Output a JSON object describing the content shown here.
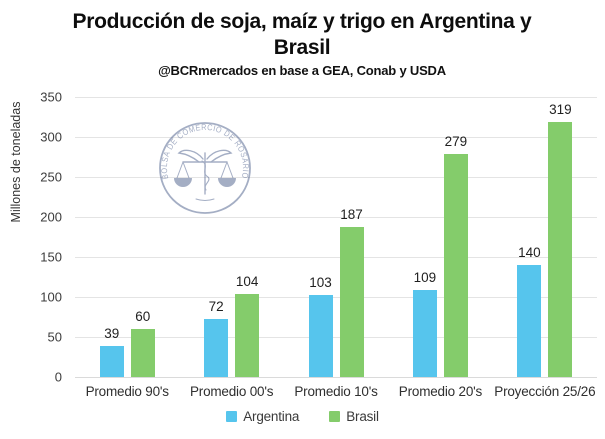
{
  "chart": {
    "title": "Producción de soja, maíz y trigo en Argentina y Brasil",
    "subtitle": "@BCRmercados en base a GEA, Conab y USDA",
    "ylabel": "Millones de toneladas"
  },
  "watermark": {
    "text": "BOLSA DE COMERCIO DE ROSARIO",
    "color": "#5b6c95"
  },
  "chart_data": {
    "type": "bar",
    "title": "Producción de soja, maíz y trigo en Argentina y Brasil",
    "subtitle": "@BCRmercados en base a GEA, Conab y USDA",
    "xlabel": "",
    "ylabel": "Millones de toneladas",
    "categories": [
      "Promedio 90's",
      "Promedio 00's",
      "Promedio 10's",
      "Promedio 20's",
      "Proyección 25/26"
    ],
    "series": [
      {
        "name": "Argentina",
        "color": "#56c5ed",
        "values": [
          39,
          72,
          103,
          109,
          140
        ]
      },
      {
        "name": "Brasil",
        "color": "#84cc6b",
        "values": [
          60,
          104,
          187,
          279,
          319
        ]
      }
    ],
    "ylim": [
      0,
      350
    ],
    "ytick_step": 50,
    "grid": true,
    "legend_position": "bottom"
  }
}
